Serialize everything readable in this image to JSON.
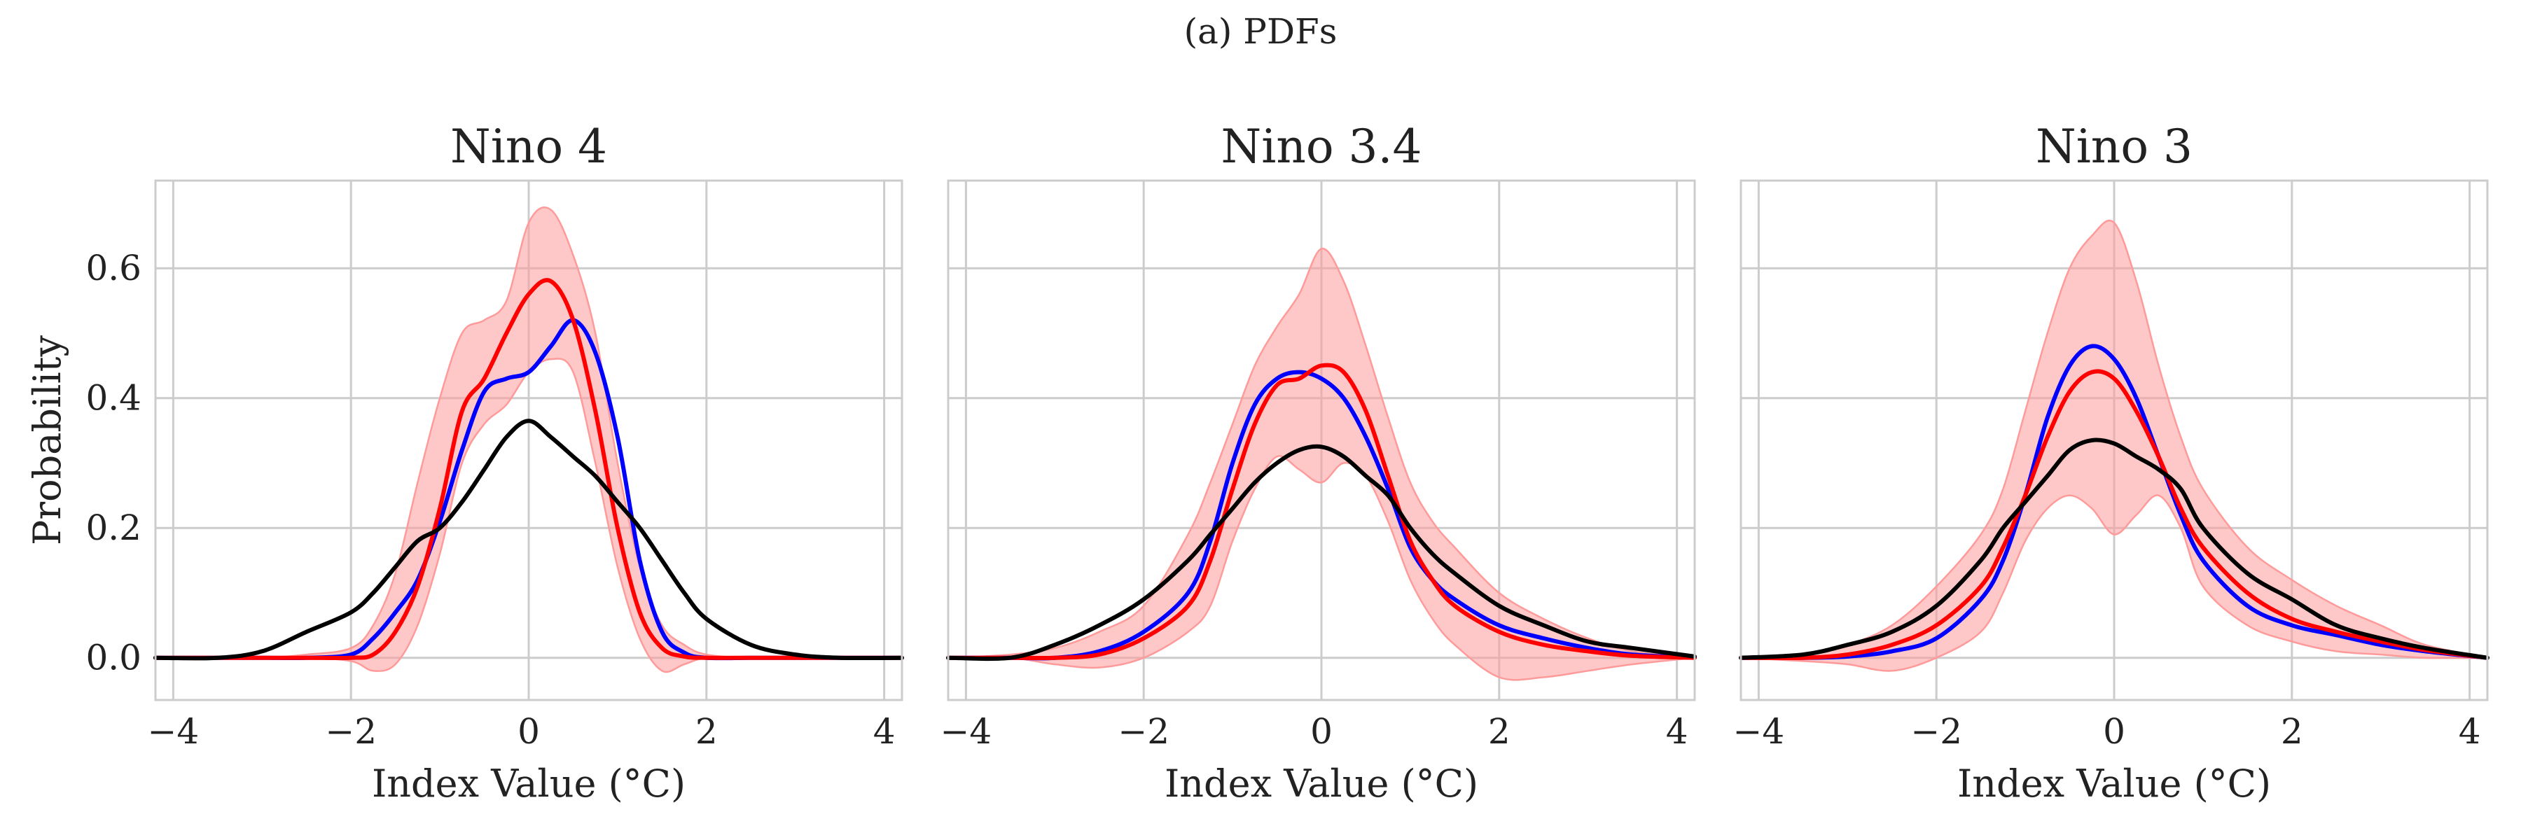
{
  "figure_title": "(a) PDFs",
  "colors": {
    "red_line": "#ff0000",
    "red_band": "#ff9a9a",
    "blue_line": "#0000ff",
    "black_line": "#000000",
    "grid": "#cccccc",
    "frame": "#cccccc"
  },
  "chart_data": [
    {
      "type": "line",
      "title": "Nino 4",
      "xlabel": "Index Value (°C)",
      "ylabel": "Probability",
      "xlim": [
        -4.2,
        4.2
      ],
      "ylim": [
        -0.065,
        0.735
      ],
      "xticks": [
        -4,
        -2,
        0,
        2,
        4
      ],
      "xtick_labels": [
        "−4",
        "−2",
        "0",
        "2",
        "4"
      ],
      "yticks": [
        0.0,
        0.2,
        0.4,
        0.6
      ],
      "ytick_labels": [
        "0.0",
        "0.2",
        "0.4",
        "0.6"
      ],
      "grid": true,
      "x": [
        -4.2,
        -3.5,
        -3,
        -2.5,
        -2,
        -1.75,
        -1.5,
        -1.25,
        -1,
        -0.75,
        -0.5,
        -0.25,
        0,
        0.25,
        0.5,
        0.75,
        1,
        1.25,
        1.5,
        1.75,
        2,
        2.5,
        3,
        3.5,
        4.2
      ],
      "series": [
        {
          "name": "blue",
          "values": [
            0,
            0,
            0,
            0,
            0.005,
            0.03,
            0.07,
            0.12,
            0.21,
            0.32,
            0.41,
            0.43,
            0.44,
            0.48,
            0.52,
            0.47,
            0.34,
            0.15,
            0.04,
            0.008,
            0,
            0,
            0,
            0,
            0
          ]
        },
        {
          "name": "red",
          "values": [
            0,
            0,
            0,
            0,
            0,
            0.005,
            0.04,
            0.11,
            0.23,
            0.38,
            0.43,
            0.5,
            0.56,
            0.58,
            0.52,
            0.38,
            0.2,
            0.07,
            0.015,
            0.002,
            0,
            0,
            0,
            0,
            0
          ]
        },
        {
          "name": "black",
          "values": [
            0,
            0,
            0.01,
            0.04,
            0.07,
            0.1,
            0.14,
            0.18,
            0.2,
            0.24,
            0.29,
            0.34,
            0.365,
            0.34,
            0.31,
            0.28,
            0.24,
            0.2,
            0.15,
            0.1,
            0.06,
            0.02,
            0.005,
            0,
            0
          ]
        }
      ],
      "band": {
        "name": "red spread",
        "lower": [
          0,
          0,
          0,
          0,
          -0.005,
          -0.02,
          -0.01,
          0.05,
          0.16,
          0.3,
          0.36,
          0.39,
          0.44,
          0.46,
          0.44,
          0.3,
          0.14,
          0.03,
          -0.02,
          -0.01,
          0,
          0,
          0,
          0,
          0
        ],
        "upper": [
          0,
          0,
          0,
          0.005,
          0.015,
          0.05,
          0.13,
          0.27,
          0.4,
          0.5,
          0.52,
          0.55,
          0.67,
          0.69,
          0.62,
          0.5,
          0.3,
          0.14,
          0.05,
          0.02,
          0.005,
          0,
          0,
          0,
          0
        ]
      }
    },
    {
      "type": "line",
      "title": "Nino 3.4",
      "xlabel": "Index Value (°C)",
      "ylabel": "",
      "xlim": [
        -4.2,
        4.2
      ],
      "ylim": [
        -0.065,
        0.735
      ],
      "xticks": [
        -4,
        -2,
        0,
        2,
        4
      ],
      "xtick_labels": [
        "−4",
        "−2",
        "0",
        "2",
        "4"
      ],
      "yticks": [
        0.0,
        0.2,
        0.4,
        0.6
      ],
      "ytick_labels": [],
      "grid": true,
      "x": [
        -4.2,
        -3.5,
        -3,
        -2.5,
        -2,
        -1.5,
        -1.25,
        -1,
        -0.75,
        -0.5,
        -0.25,
        0,
        0.25,
        0.5,
        0.75,
        1,
        1.25,
        1.5,
        2,
        2.5,
        3,
        3.5,
        4.2
      ],
      "series": [
        {
          "name": "blue",
          "values": [
            0,
            0,
            0,
            0.01,
            0.04,
            0.1,
            0.18,
            0.3,
            0.39,
            0.43,
            0.44,
            0.43,
            0.4,
            0.34,
            0.26,
            0.17,
            0.12,
            0.09,
            0.05,
            0.03,
            0.015,
            0.005,
            0
          ]
        },
        {
          "name": "red",
          "values": [
            0,
            0,
            0,
            0.005,
            0.03,
            0.08,
            0.15,
            0.26,
            0.36,
            0.42,
            0.43,
            0.45,
            0.44,
            0.38,
            0.28,
            0.18,
            0.12,
            0.08,
            0.04,
            0.02,
            0.01,
            0.003,
            0
          ]
        },
        {
          "name": "black",
          "values": [
            0,
            0,
            0.02,
            0.05,
            0.09,
            0.15,
            0.19,
            0.23,
            0.27,
            0.3,
            0.32,
            0.325,
            0.31,
            0.28,
            0.25,
            0.2,
            0.16,
            0.13,
            0.08,
            0.05,
            0.025,
            0.015,
            0.002
          ]
        }
      ],
      "band": {
        "name": "red spread",
        "lower": [
          0,
          0,
          -0.01,
          -0.015,
          0,
          0.04,
          0.08,
          0.18,
          0.26,
          0.31,
          0.29,
          0.27,
          0.3,
          0.28,
          0.21,
          0.12,
          0.06,
          0.02,
          -0.03,
          -0.03,
          -0.02,
          -0.01,
          0
        ],
        "upper": [
          0,
          0.005,
          0.015,
          0.04,
          0.08,
          0.19,
          0.27,
          0.36,
          0.45,
          0.51,
          0.56,
          0.63,
          0.58,
          0.48,
          0.37,
          0.27,
          0.21,
          0.17,
          0.1,
          0.06,
          0.03,
          0.01,
          0
        ]
      }
    },
    {
      "type": "line",
      "title": "Nino 3",
      "xlabel": "Index Value (°C)",
      "ylabel": "",
      "xlim": [
        -4.2,
        4.2
      ],
      "ylim": [
        -0.065,
        0.735
      ],
      "xticks": [
        -4,
        -2,
        0,
        2,
        4
      ],
      "xtick_labels": [
        "−4",
        "−2",
        "0",
        "2",
        "4"
      ],
      "yticks": [
        0.0,
        0.2,
        0.4,
        0.6
      ],
      "ytick_labels": [],
      "grid": true,
      "x": [
        -4.2,
        -3.5,
        -3,
        -2.5,
        -2,
        -1.5,
        -1.25,
        -1,
        -0.75,
        -0.5,
        -0.25,
        0,
        0.25,
        0.5,
        0.75,
        1,
        1.5,
        2,
        2.5,
        3,
        3.5,
        4.2
      ],
      "series": [
        {
          "name": "blue",
          "values": [
            0,
            0,
            0.002,
            0.01,
            0.03,
            0.09,
            0.15,
            0.25,
            0.37,
            0.45,
            0.48,
            0.46,
            0.4,
            0.31,
            0.22,
            0.15,
            0.08,
            0.05,
            0.035,
            0.02,
            0.01,
            0
          ]
        },
        {
          "name": "red",
          "values": [
            0,
            0,
            0.005,
            0.02,
            0.05,
            0.11,
            0.17,
            0.25,
            0.34,
            0.41,
            0.44,
            0.43,
            0.38,
            0.31,
            0.23,
            0.17,
            0.1,
            0.06,
            0.04,
            0.025,
            0.012,
            0
          ]
        },
        {
          "name": "black",
          "values": [
            0,
            0.005,
            0.02,
            0.04,
            0.08,
            0.15,
            0.2,
            0.24,
            0.28,
            0.32,
            0.335,
            0.33,
            0.31,
            0.29,
            0.26,
            0.2,
            0.13,
            0.09,
            0.05,
            0.03,
            0.015,
            0
          ]
        }
      ],
      "band": {
        "name": "red spread",
        "lower": [
          0,
          -0.005,
          -0.01,
          -0.02,
          0,
          0.04,
          0.1,
          0.18,
          0.23,
          0.25,
          0.23,
          0.19,
          0.22,
          0.25,
          0.2,
          0.11,
          0.05,
          0.025,
          0.01,
          0.005,
          0,
          0
        ],
        "upper": [
          0,
          0.005,
          0.02,
          0.05,
          0.11,
          0.19,
          0.26,
          0.38,
          0.5,
          0.6,
          0.65,
          0.67,
          0.58,
          0.45,
          0.34,
          0.26,
          0.17,
          0.12,
          0.08,
          0.05,
          0.02,
          0
        ]
      }
    }
  ]
}
